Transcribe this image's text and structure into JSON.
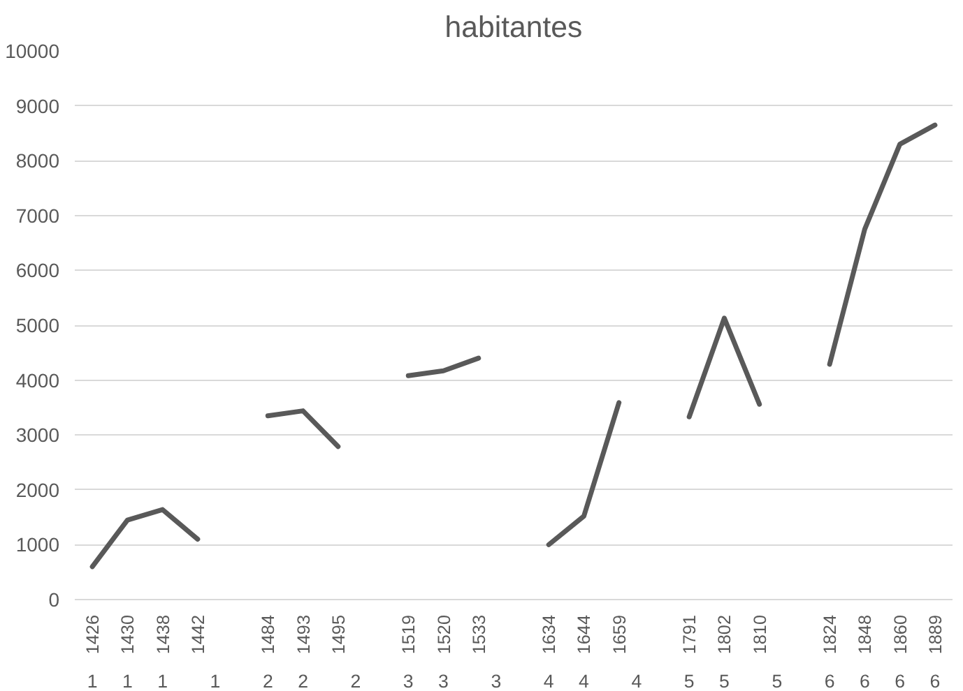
{
  "chart_data": {
    "type": "line",
    "title": "habitantes",
    "categories": [
      "1426",
      "1430",
      "1438",
      "1442",
      null,
      "1484",
      "1493",
      "1495",
      null,
      "1519",
      "1520",
      "1533",
      null,
      "1634",
      "1644",
      "1659",
      null,
      "1791",
      "1802",
      "1810",
      null,
      "1824",
      "1848",
      "1860",
      "1889"
    ],
    "values": [
      600,
      1450,
      1640,
      1100,
      null,
      3350,
      3440,
      2790,
      null,
      4080,
      4170,
      4400,
      null,
      1000,
      1520,
      3590,
      null,
      3330,
      5130,
      3560,
      null,
      4290,
      6750,
      8300,
      8650
    ],
    "color": "#595959",
    "ylim": [
      0,
      10000
    ],
    "yticks": [
      0,
      1000,
      2000,
      3000,
      4000,
      5000,
      6000,
      7000,
      8000,
      9000,
      10000
    ],
    "grid": "y",
    "annotations": [
      "1",
      "1",
      "1",
      "1",
      "2",
      "2",
      "2",
      "3",
      "3",
      "3",
      "4",
      "4",
      "4",
      "5",
      "5",
      "5",
      "6",
      "6",
      "6",
      "6"
    ]
  }
}
